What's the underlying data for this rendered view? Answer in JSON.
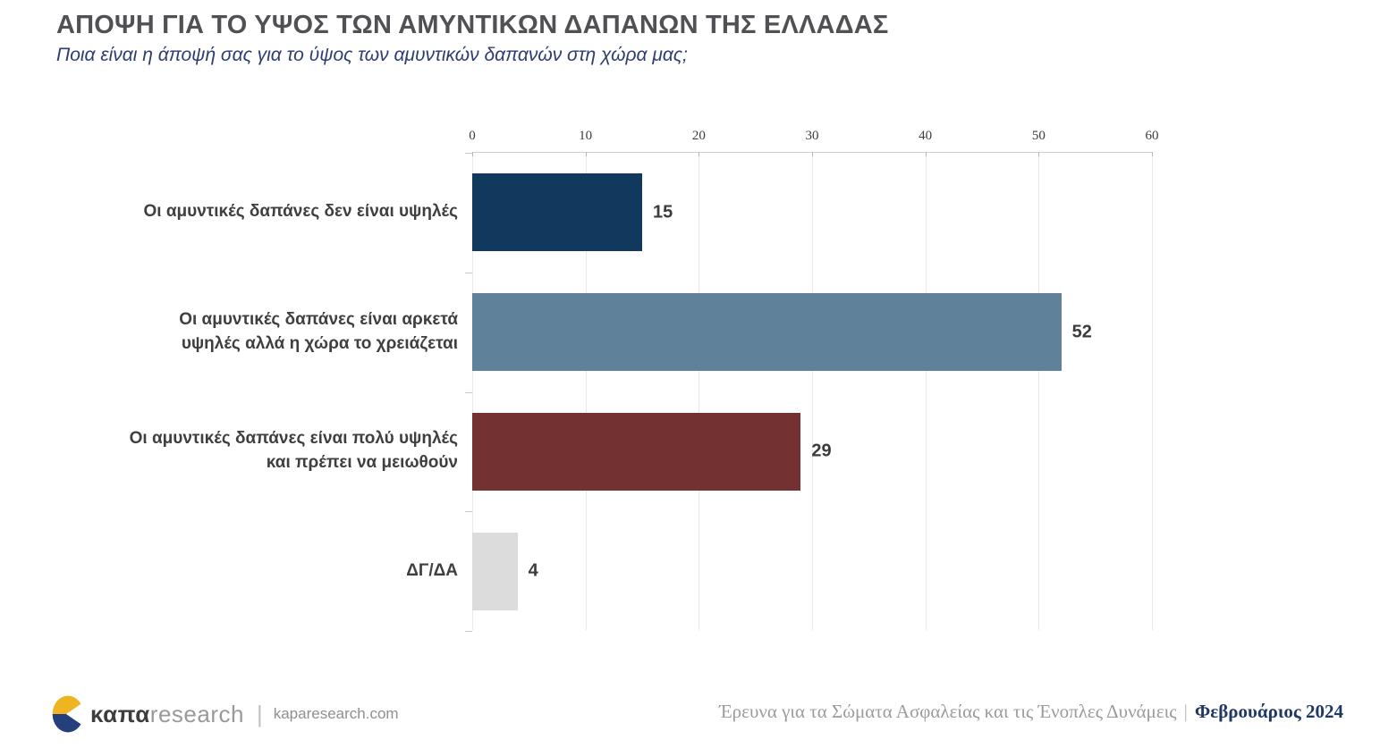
{
  "header": {
    "title": "ΑΠΟΨΗ ΓΙΑ ΤΟ ΥΨΟΣ ΤΩΝ ΑΜΥΝΤΙΚΩΝ ΔΑΠΑΝΩΝ ΤΗΣ ΕΛΛΑΔΑΣ",
    "subtitle": "Ποια είναι η άποψή σας για το ύψος των αμυντικών δαπανών στη χώρα μας;"
  },
  "chart_data": {
    "type": "bar",
    "orientation": "horizontal",
    "categories": [
      [
        "Οι αμυντικές δαπάνες δεν είναι υψηλές"
      ],
      [
        "Οι αμυντικές δαπάνες είναι αρκετά",
        "υψηλές αλλά η χώρα το χρειάζεται"
      ],
      [
        "Οι αμυντικές δαπάνες είναι πολύ υψηλές",
        "και πρέπει να μειωθούν"
      ],
      [
        "ΔΓ/ΔΑ"
      ]
    ],
    "values": [
      15,
      52,
      29,
      4
    ],
    "bar_colors": [
      "#11395e",
      "#60819a",
      "#733231",
      "#dcdcdc"
    ],
    "xlim": [
      0,
      60
    ],
    "x_ticks": [
      0,
      10,
      20,
      30,
      40,
      50,
      60
    ],
    "grid": true,
    "legend": false,
    "value_labels": true,
    "axis_position": "top"
  },
  "footer": {
    "logo": {
      "brand_bold": "καπα",
      "brand_light": "research",
      "divider": "|",
      "website": "kaparesearch.com",
      "mark_colors": {
        "top": "#f0b322",
        "bottom": "#24407c"
      }
    },
    "right": {
      "survey": "Έρευνα για τα Σώματα Ασφαλείας και τις Ένοπλες Δυνάμεις",
      "divider": "|",
      "date": "Φεβρουάριος 2024"
    }
  },
  "colors": {
    "title": "#515155",
    "subtitle": "#2e3c74",
    "value_label": "#3b3b3b",
    "gridline": "#e9e9e9",
    "footer_date": "#1f3864"
  }
}
